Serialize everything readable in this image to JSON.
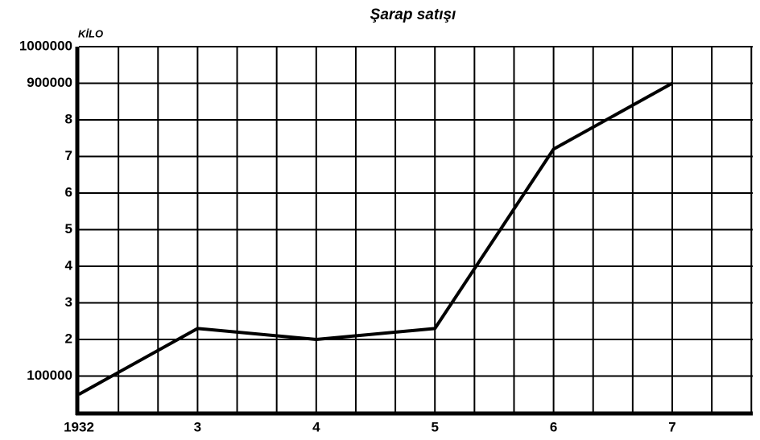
{
  "chart_data": {
    "type": "line",
    "title": "Şarap satışı",
    "y_unit": "KİLO",
    "categories": [
      "1932",
      "3",
      "4",
      "5",
      "6",
      "7"
    ],
    "series": [
      {
        "name": null,
        "color": "#000000",
        "values": [
          50000,
          230000,
          200000,
          230000,
          720000,
          900000
        ]
      }
    ],
    "ylim": [
      0,
      1000000
    ],
    "yticks": [
      {
        "value": 100000,
        "label": "100000"
      },
      {
        "value": 200000,
        "label": "2"
      },
      {
        "value": 300000,
        "label": "3"
      },
      {
        "value": 400000,
        "label": "4"
      },
      {
        "value": 500000,
        "label": "5"
      },
      {
        "value": 600000,
        "label": "6"
      },
      {
        "value": 700000,
        "label": "7"
      },
      {
        "value": 800000,
        "label": "8"
      },
      900000,
      1000000
    ],
    "grid": true
  }
}
